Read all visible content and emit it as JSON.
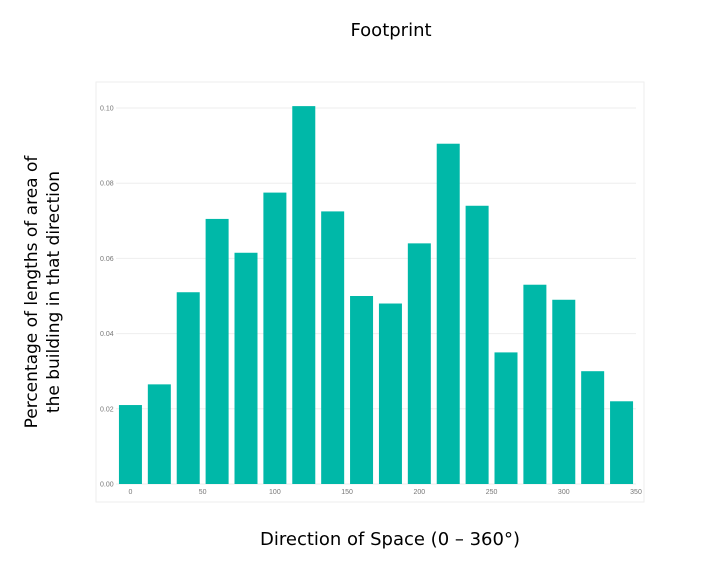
{
  "chart_data": {
    "type": "bar",
    "title": "Footprint",
    "xlabel": "Direction of Space (0 – 360°)",
    "ylabel_lines": [
      "Percentage of lengths  of area of",
      "the building in that direction"
    ],
    "x": [
      0,
      20,
      40,
      60,
      80,
      100,
      120,
      140,
      160,
      180,
      200,
      220,
      240,
      260,
      280,
      300,
      320,
      340
    ],
    "values": [
      0.021,
      0.0265,
      0.051,
      0.0705,
      0.0615,
      0.0775,
      0.1005,
      0.0725,
      0.05,
      0.048,
      0.064,
      0.0905,
      0.074,
      0.035,
      0.053,
      0.049,
      0.03,
      0.022
    ],
    "xticks": [
      "0",
      "50",
      "100",
      "150",
      "200",
      "250",
      "300",
      "350"
    ],
    "yticks": [
      "0.00",
      "0.02",
      "0.04",
      "0.06",
      "0.08",
      "0.10"
    ],
    "xlim": [
      -10,
      350
    ],
    "ylim": [
      0,
      0.1
    ],
    "grid": true,
    "legend": "none",
    "colors": {
      "bar": "#00b8a8",
      "grid": "#eeeeee",
      "tick": "#777777",
      "frame": "#eeeeee"
    }
  }
}
